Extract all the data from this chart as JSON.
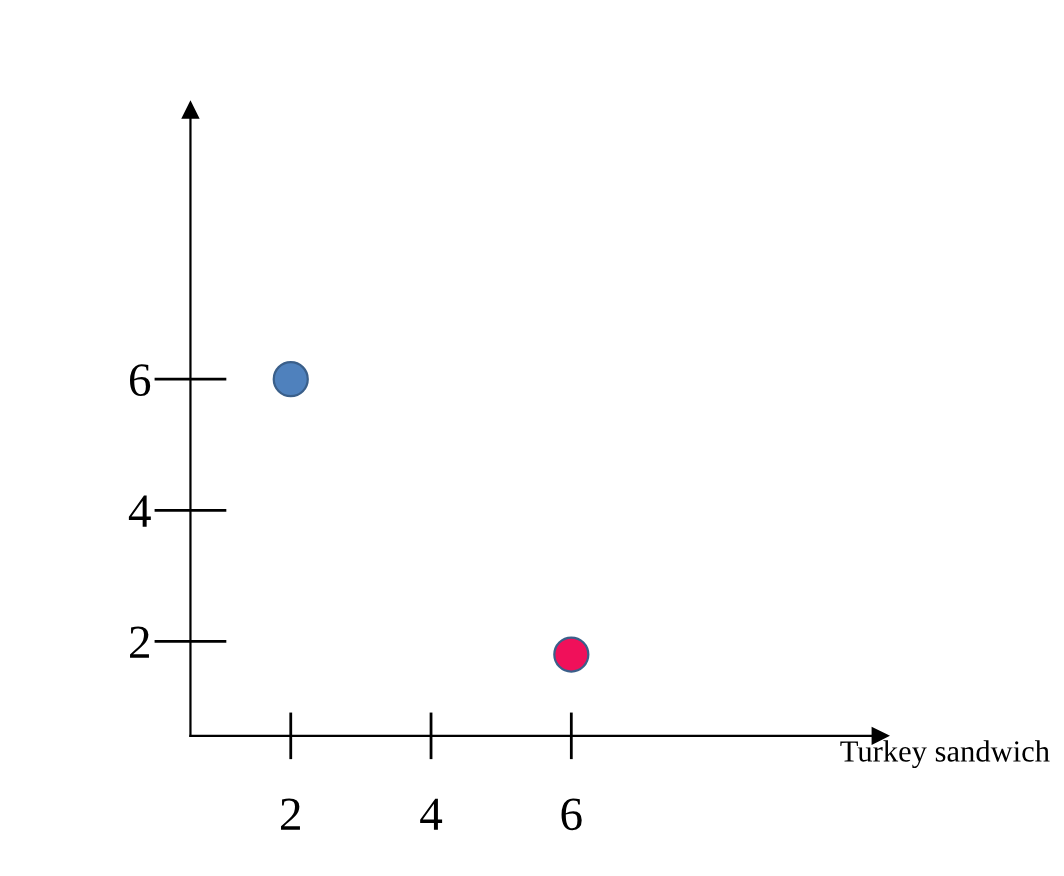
{
  "chart_data": {
    "type": "scatter",
    "xlabel": "Turkey sandwich",
    "x": [
      2,
      6
    ],
    "series": [
      {
        "color": "#4f81bd",
        "values": [
          6,
          null
        ]
      },
      {
        "color": "#f0105a",
        "values": [
          null,
          1.8
        ]
      }
    ],
    "xlim": [
      0.57,
      10.4
    ],
    "ylim": [
      0.56,
      10.1
    ],
    "xticks": [
      2,
      4,
      6
    ],
    "yticks": [
      2,
      4,
      6
    ],
    "grid": false,
    "marker": "circle"
  }
}
